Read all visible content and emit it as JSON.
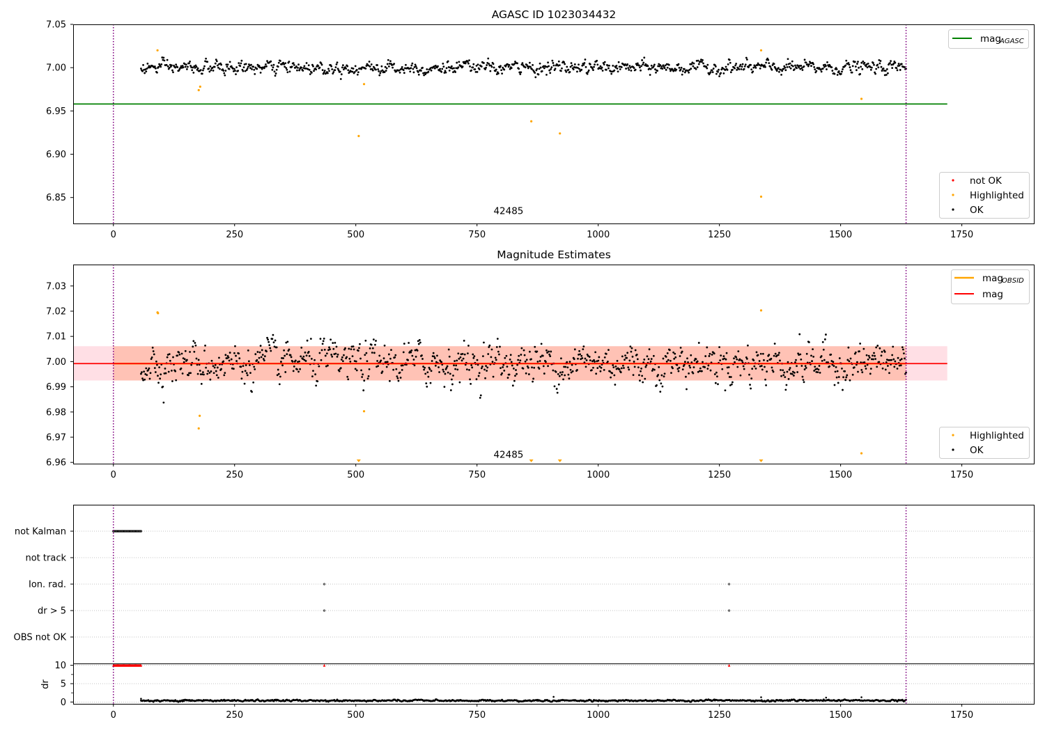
{
  "chart_data": [
    {
      "type": "scatter",
      "title": "AGASC ID 1023034432",
      "xlabel": "",
      "ylabel": "",
      "xlim": [
        -83,
        1900
      ],
      "ylim": [
        6.82,
        7.05
      ],
      "xticks": [
        0,
        250,
        500,
        750,
        1000,
        1250,
        1500,
        1750
      ],
      "xtick_labels": [
        "0",
        "250",
        "500",
        "750",
        "1000",
        "1250",
        "1500",
        "1750"
      ],
      "yticks": [
        6.85,
        6.9,
        6.95,
        7.0,
        7.05
      ],
      "ytick_labels": [
        "6.85",
        "6.90",
        "6.95",
        "7.00",
        "7.05"
      ],
      "grid": false,
      "vlines": [
        0,
        1635
      ],
      "annotation": {
        "text": "42485",
        "x": 815,
        "y": 6.831
      },
      "lines": [
        {
          "name": "mag",
          "name_sub": "AGASC",
          "y": 6.958,
          "x": [
            -83,
            1720
          ],
          "color": "#008000"
        }
      ],
      "ok_series": {
        "name": "OK",
        "color": "#000000",
        "x_start": 57,
        "x_end": 1635,
        "n": 1050,
        "center": 7.0,
        "noise": 0.006
      },
      "highlighted": {
        "name": "Highlighted",
        "color": "#ffa500",
        "points": [
          [
            91,
            7.02
          ],
          [
            176,
            6.974
          ],
          [
            179,
            6.978
          ],
          [
            517,
            6.981
          ],
          [
            506,
            6.921
          ],
          [
            862,
            6.938
          ],
          [
            921,
            6.924
          ],
          [
            1336,
            7.02
          ],
          [
            1336,
            6.851
          ],
          [
            1543,
            6.964
          ]
        ]
      },
      "not_ok": {
        "name": "not OK",
        "color": "#ff0000",
        "points": []
      },
      "legend_top": [
        {
          "label": "mag",
          "sub": "AGASC",
          "color": "#008000",
          "kind": "line"
        }
      ],
      "legend_bottom": [
        {
          "label": "not OK",
          "color": "#ff0000",
          "kind": "dot"
        },
        {
          "label": "Highlighted",
          "color": "#ffa500",
          "kind": "dot"
        },
        {
          "label": "OK",
          "color": "#000000",
          "kind": "dot"
        }
      ]
    },
    {
      "type": "scatter",
      "title": "Magnitude Estimates",
      "xlabel": "",
      "ylabel": "",
      "xlim": [
        -83,
        1900
      ],
      "ylim": [
        6.9595,
        7.0385
      ],
      "xticks": [
        0,
        250,
        500,
        750,
        1000,
        1250,
        1500,
        1750
      ],
      "xtick_labels": [
        "0",
        "250",
        "500",
        "750",
        "1000",
        "1250",
        "1500",
        "1750"
      ],
      "yticks": [
        6.96,
        6.97,
        6.98,
        6.99,
        7.0,
        7.01,
        7.02,
        7.03
      ],
      "ytick_labels": [
        "6.96",
        "6.97",
        "6.98",
        "6.99",
        "7.00",
        "7.01",
        "7.02",
        "7.03"
      ],
      "grid": false,
      "vlines": [
        0,
        1635
      ],
      "annotation": {
        "text": "42485",
        "x": 815,
        "y": 6.9618
      },
      "mag_line": {
        "name": "mag",
        "y": 6.9992,
        "x": [
          -83,
          1720
        ],
        "color": "#ff0000"
      },
      "mag_band": {
        "y0": 6.9925,
        "y1": 7.0061,
        "x": [
          -83,
          1720
        ],
        "color": "#ffc0cb"
      },
      "obsid_line": {
        "name": "mag",
        "sub": "OBSID",
        "y": 6.9992,
        "x": [
          0,
          1635
        ],
        "color": "#ffa500"
      },
      "obsid_band": {
        "y0": 6.9925,
        "y1": 7.0061,
        "x": [
          0,
          1635
        ],
        "color": "#ffa07a"
      },
      "ok_series": {
        "name": "OK",
        "color": "#000000",
        "x_start": 57,
        "x_end": 1635,
        "n": 1050,
        "center": 6.9995,
        "noise": 0.0065
      },
      "highlighted": {
        "name": "Highlighted",
        "color": "#ffa500",
        "points": [
          [
            91,
            7.0195
          ],
          [
            92,
            7.0192
          ],
          [
            176,
            6.9735
          ],
          [
            178,
            6.9785
          ],
          [
            517,
            6.9803
          ],
          [
            1336,
            7.0203
          ],
          [
            1543,
            6.9636
          ]
        ],
        "below_axis_x": [
          506,
          862,
          921,
          1336
        ]
      },
      "legend_top": [
        {
          "label": "mag",
          "sub": "OBSID",
          "color": "#ffa500",
          "kind": "line"
        },
        {
          "label": "mag",
          "color": "#ff0000",
          "kind": "line"
        }
      ],
      "legend_bottom": [
        {
          "label": "Highlighted",
          "color": "#ffa500",
          "kind": "dot"
        },
        {
          "label": "OK",
          "color": "#000000",
          "kind": "dot"
        }
      ]
    },
    {
      "type": "scatter",
      "title": "",
      "xlabel": "",
      "ylabel": "",
      "xlim": [
        -83,
        1900
      ],
      "categories": [
        "not Kalman",
        "not track",
        "Ion. rad.",
        "dr > 5",
        "OBS not OK"
      ],
      "grid": true,
      "vlines": [
        0,
        1635
      ],
      "flags": [
        {
          "category": "not Kalman",
          "x_start": 0,
          "x_end": 57,
          "n": 36,
          "color": "#000000"
        },
        {
          "category": "not track",
          "x": [],
          "color": "#000000"
        },
        {
          "category": "Ion. rad.",
          "x": [
            435,
            1270
          ],
          "color": "#000000"
        },
        {
          "category": "dr > 5",
          "x": [
            435,
            1270
          ],
          "color": "#000000"
        },
        {
          "category": "OBS not OK",
          "x": [],
          "color": "#000000"
        }
      ]
    },
    {
      "type": "scatter",
      "title": "",
      "xlabel": "",
      "ylabel": "dr",
      "xlim": [
        -83,
        1900
      ],
      "ylim": [
        -0.5,
        10.5
      ],
      "xticks": [
        0,
        250,
        500,
        750,
        1000,
        1250,
        1500,
        1750
      ],
      "xtick_labels": [
        "0",
        "250",
        "500",
        "750",
        "1000",
        "1250",
        "1500",
        "1750"
      ],
      "yticks": [
        0,
        5,
        10
      ],
      "ytick_labels": [
        "0",
        "5",
        "10"
      ],
      "grid": true,
      "vlines": [
        0,
        1635
      ],
      "clipped": {
        "y": 10,
        "x_start": 0,
        "x_end": 57,
        "n": 36,
        "extra_x": [
          435,
          1270
        ],
        "color": "#ff0000"
      },
      "ok_series": {
        "name": "dr",
        "color": "#000000",
        "x_start": 57,
        "x_end": 1635,
        "n": 1050,
        "center": 0.35,
        "noise": 0.18
      },
      "spikes": [
        [
          57,
          0.9
        ],
        [
          908,
          1.4
        ],
        [
          1336,
          1.3
        ],
        [
          1470,
          1.2
        ],
        [
          1543,
          1.3
        ]
      ]
    }
  ]
}
